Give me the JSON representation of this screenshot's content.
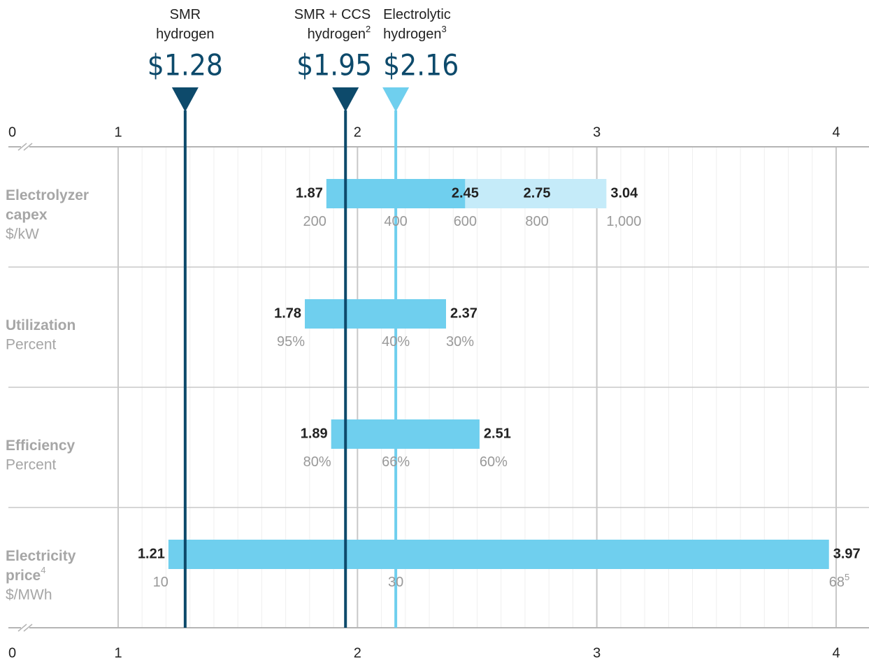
{
  "chart_data": {
    "type": "tornado",
    "xlim": [
      1,
      4
    ],
    "xticks": [
      0,
      1,
      2,
      3,
      4
    ],
    "minor_grid_step": 0.1,
    "references": [
      {
        "name_lines": [
          "SMR",
          "hydrogen"
        ],
        "value": 1.28,
        "value_label": "$1.28",
        "color": "#0d4a6b"
      },
      {
        "name_lines": [
          "SMR + CCS",
          "hydrogen"
        ],
        "footnote": "2",
        "value": 1.95,
        "value_label": "$1.95",
        "color": "#0d4a6b"
      },
      {
        "name_lines": [
          "Electrolytic",
          "hydrogen"
        ],
        "footnote": "3",
        "value": 2.16,
        "value_label": "$2.16",
        "color": "#6fcfee"
      }
    ],
    "rows": [
      {
        "name_lines": [
          "Electrolyzer",
          "capex"
        ],
        "unit": "$/kW",
        "segments": [
          {
            "start": 1.87,
            "end": 2.45,
            "color": "#6fcfee"
          },
          {
            "start": 2.45,
            "end": 3.04,
            "color": "#c5ebf9"
          }
        ],
        "values": [
          1.87,
          2.45,
          2.75,
          3.04
        ],
        "inputs": [
          {
            "value": 200,
            "cost": 1.87
          },
          {
            "value": 400,
            "cost": 2.16
          },
          {
            "value": 600,
            "cost": 2.45
          },
          {
            "value": 800,
            "cost": 2.75
          },
          {
            "value": 1000,
            "label": "1,000",
            "cost": 3.04
          }
        ]
      },
      {
        "name_lines": [
          "Utilization"
        ],
        "unit": "Percent",
        "segments": [
          {
            "start": 1.78,
            "end": 2.37,
            "color": "#6fcfee"
          }
        ],
        "values": [
          1.78,
          2.37
        ],
        "inputs": [
          {
            "value": 95,
            "label": "95%",
            "cost": 1.78
          },
          {
            "value": 40,
            "label": "40%",
            "cost": 2.16
          },
          {
            "value": 30,
            "label": "30%",
            "cost": 2.37
          }
        ]
      },
      {
        "name_lines": [
          "Efficiency"
        ],
        "unit": "Percent",
        "segments": [
          {
            "start": 1.89,
            "end": 2.51,
            "color": "#6fcfee"
          }
        ],
        "values": [
          1.89,
          2.51
        ],
        "inputs": [
          {
            "value": 80,
            "label": "80%",
            "cost": 1.89
          },
          {
            "value": 66,
            "label": "66%",
            "cost": 2.16
          },
          {
            "value": 60,
            "label": "60%",
            "cost": 2.51
          }
        ]
      },
      {
        "name_lines": [
          "Electricity",
          "price"
        ],
        "footnote": "4",
        "unit": "$/MWh",
        "segments": [
          {
            "start": 1.21,
            "end": 3.97,
            "color": "#6fcfee"
          }
        ],
        "values": [
          1.21,
          3.97
        ],
        "inputs": [
          {
            "value": 10,
            "cost": 1.21
          },
          {
            "value": 30,
            "cost": 2.16
          },
          {
            "value": 68,
            "footnote": "5",
            "cost": 3.97
          }
        ]
      }
    ]
  }
}
